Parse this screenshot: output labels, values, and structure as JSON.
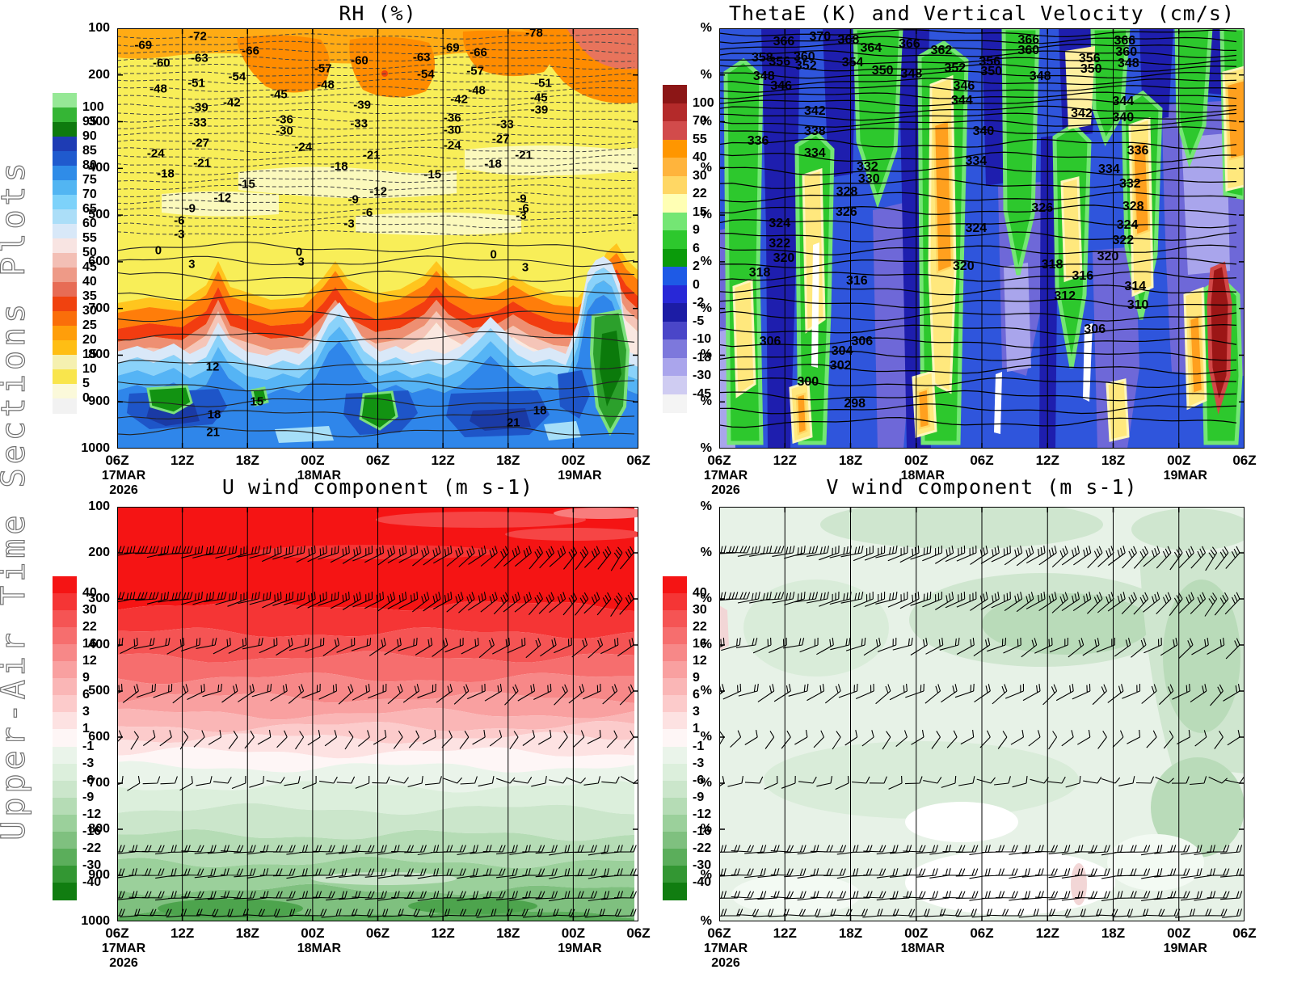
{
  "side_label": "Upper-Air Time Sections Plots",
  "axes": {
    "time_ticks": [
      "06Z",
      "12Z",
      "18Z",
      "00Z",
      "06Z",
      "12Z",
      "18Z",
      "00Z",
      "06Z"
    ],
    "date_labels": [
      {
        "tick": 0,
        "lines": [
          "17MAR",
          "2026"
        ]
      },
      {
        "tick": 3,
        "lines": [
          "18MAR"
        ]
      },
      {
        "tick": 7,
        "lines": [
          "19MAR"
        ]
      }
    ],
    "pressure_labels": [
      "100",
      "200",
      "300",
      "400",
      "500",
      "600",
      "700",
      "800",
      "900",
      "1000"
    ],
    "percent_labels": [
      "%",
      "%",
      "%",
      "%",
      "%",
      "%",
      "%",
      "%",
      "%",
      "%"
    ]
  },
  "panels": {
    "rh": {
      "title": "RH (%)",
      "colorbar": {
        "values": [
          100,
          95,
          90,
          85,
          80,
          75,
          70,
          65,
          60,
          55,
          50,
          45,
          40,
          35,
          30,
          25,
          20,
          15,
          10,
          5,
          0
        ],
        "colors": [
          "#96e896",
          "#35b535",
          "#0e7a0e",
          "#1e3cb4",
          "#1f5ace",
          "#2f8ce8",
          "#52b5f2",
          "#7dd2fa",
          "#abdef8",
          "#d8e8f8",
          "#f8e4e2",
          "#f3bfb5",
          "#ee9a87",
          "#e76c55",
          "#f0420f",
          "#fa6e0a",
          "#ff9e0a",
          "#ffbe14",
          "#f5f0b0",
          "#f9e54c",
          "#fbf9da",
          "#f2f2f2"
        ]
      },
      "contour_labels": [
        [
          5,
          4,
          "-69"
        ],
        [
          15.5,
          2,
          "-72"
        ],
        [
          25.6,
          5.4,
          "-66"
        ],
        [
          64,
          4.6,
          "-69"
        ],
        [
          80,
          1.2,
          "-78"
        ],
        [
          8.5,
          8.3,
          "-60"
        ],
        [
          15.8,
          7.1,
          "-63"
        ],
        [
          46.5,
          7.7,
          "-60"
        ],
        [
          58.4,
          6.9,
          "-63"
        ],
        [
          69.3,
          5.8,
          "-66"
        ],
        [
          39.5,
          9.6,
          "-57"
        ],
        [
          23,
          11.5,
          "-54"
        ],
        [
          59.2,
          11,
          "-54"
        ],
        [
          68.7,
          10.2,
          "-57"
        ],
        [
          15.2,
          13.1,
          "-51"
        ],
        [
          40,
          13.4,
          "-48"
        ],
        [
          81.7,
          13.1,
          "-51"
        ],
        [
          7.9,
          14.4,
          "-48"
        ],
        [
          69,
          14.8,
          "-48"
        ],
        [
          31,
          15.8,
          "-45"
        ],
        [
          80.9,
          16.5,
          "-45"
        ],
        [
          22,
          17.7,
          "-42"
        ],
        [
          65.6,
          16.9,
          "-42"
        ],
        [
          15.8,
          18.8,
          "-39"
        ],
        [
          47,
          18.3,
          "-39"
        ],
        [
          81,
          19.4,
          "-39"
        ],
        [
          32.1,
          21.7,
          "-36"
        ],
        [
          64.3,
          21.3,
          "-36"
        ],
        [
          15.5,
          22.5,
          "-33"
        ],
        [
          46.4,
          22.7,
          "-33"
        ],
        [
          74.4,
          22.9,
          "-33"
        ],
        [
          32.1,
          24.4,
          "-30"
        ],
        [
          64.3,
          24.2,
          "-30"
        ],
        [
          16,
          27.3,
          "-27"
        ],
        [
          73.6,
          26.4,
          "-27"
        ],
        [
          7.4,
          29.8,
          "-24"
        ],
        [
          35.7,
          28.3,
          "-24"
        ],
        [
          64.3,
          27.9,
          "-24"
        ],
        [
          16.3,
          32.1,
          "-21"
        ],
        [
          48.8,
          30.2,
          "-21"
        ],
        [
          78,
          30.2,
          "-21"
        ],
        [
          9.3,
          34.6,
          "-18"
        ],
        [
          42.6,
          32.9,
          "-18"
        ],
        [
          72.1,
          32.3,
          "-18"
        ],
        [
          24.8,
          37.1,
          "-15"
        ],
        [
          60.5,
          34.8,
          "-15"
        ],
        [
          20.2,
          40.4,
          "-12"
        ],
        [
          50.1,
          38.9,
          "-12"
        ],
        [
          14,
          42.9,
          "-9"
        ],
        [
          45.3,
          40.8,
          "-9"
        ],
        [
          77.5,
          40.6,
          "-9"
        ],
        [
          11.9,
          45.8,
          "-6"
        ],
        [
          48,
          43.9,
          "-6"
        ],
        [
          78,
          42.9,
          "-6"
        ],
        [
          11.9,
          49,
          "-3"
        ],
        [
          44.5,
          46.5,
          "-3"
        ],
        [
          77.5,
          44.6,
          "-3"
        ],
        [
          7.9,
          52.9,
          "0"
        ],
        [
          34.9,
          53.3,
          "0"
        ],
        [
          72.2,
          53.8,
          "0"
        ],
        [
          14.3,
          56.2,
          "3"
        ],
        [
          35.3,
          55.6,
          "3"
        ],
        [
          78.3,
          56.9,
          "3"
        ],
        [
          18.3,
          80.5,
          "12"
        ],
        [
          26.8,
          88.8,
          "15"
        ],
        [
          18.6,
          91.9,
          "18"
        ],
        [
          81.1,
          91,
          "18"
        ],
        [
          18.4,
          96.2,
          "21"
        ],
        [
          76,
          93.9,
          "21"
        ]
      ]
    },
    "thetae": {
      "title": "ThetaE (K) and Vertical Velocity (cm/s)",
      "colorbar": {
        "values": [
          100,
          70,
          55,
          40,
          30,
          22,
          15,
          9,
          6,
          2,
          0,
          -2,
          -5,
          -10,
          -18,
          -30,
          -45
        ],
        "colors": [
          "#8c1616",
          "#b42a2a",
          "#d24b4b",
          "#ff9600",
          "#ffb43c",
          "#ffd764",
          "#ffffb4",
          "#74e674",
          "#2dc82d",
          "#0a9b0a",
          "#1e5ae6",
          "#2828d7",
          "#1c1ca5",
          "#4a46c8",
          "#7d78dc",
          "#aaa5ec",
          "#cfccf2",
          "#f4f4f4"
        ]
      },
      "contour_labels": [
        [
          12.3,
          3.3,
          "366"
        ],
        [
          19.2,
          2.1,
          "370"
        ],
        [
          24.6,
          2.9,
          "368"
        ],
        [
          28.9,
          4.8,
          "364"
        ],
        [
          36.2,
          3.8,
          "366"
        ],
        [
          58.9,
          2.9,
          "366"
        ],
        [
          77.2,
          3.1,
          "366"
        ],
        [
          8.2,
          7.1,
          "358"
        ],
        [
          11.5,
          8.1,
          "356"
        ],
        [
          16.2,
          6.9,
          "360"
        ],
        [
          42.3,
          5.4,
          "362"
        ],
        [
          58.9,
          5.4,
          "360"
        ],
        [
          77.5,
          5.8,
          "360"
        ],
        [
          16.5,
          9,
          "352"
        ],
        [
          25.4,
          8.3,
          "354"
        ],
        [
          31.1,
          10.2,
          "350"
        ],
        [
          36.6,
          11,
          "348"
        ],
        [
          44.9,
          9.6,
          "352"
        ],
        [
          51.5,
          8.1,
          "356"
        ],
        [
          51.8,
          10.4,
          "350"
        ],
        [
          70.5,
          7.3,
          "356"
        ],
        [
          70.8,
          9.8,
          "350"
        ],
        [
          77.9,
          8.5,
          "348"
        ],
        [
          8.5,
          11.5,
          "348"
        ],
        [
          61.1,
          11.5,
          "348"
        ],
        [
          11.8,
          13.8,
          "346"
        ],
        [
          46.6,
          13.8,
          "346"
        ],
        [
          46.2,
          17.3,
          "344"
        ],
        [
          76.9,
          17.5,
          "344"
        ],
        [
          18.2,
          19.8,
          "342"
        ],
        [
          69,
          20.4,
          "342"
        ],
        [
          7.4,
          26.9,
          "336"
        ],
        [
          18.2,
          24.6,
          "338"
        ],
        [
          50.3,
          24.6,
          "340"
        ],
        [
          76.9,
          21.3,
          "340"
        ],
        [
          18.2,
          29.8,
          "334"
        ],
        [
          48.9,
          31.7,
          "334"
        ],
        [
          74.2,
          33.7,
          "334"
        ],
        [
          79.7,
          29.2,
          "336"
        ],
        [
          28.2,
          33.1,
          "332"
        ],
        [
          28.5,
          36,
          "330"
        ],
        [
          78.2,
          37.1,
          "332"
        ],
        [
          24.3,
          39,
          "328"
        ],
        [
          24.2,
          43.8,
          "326"
        ],
        [
          61.5,
          42.9,
          "326"
        ],
        [
          78.8,
          42.5,
          "328"
        ],
        [
          11.5,
          46.5,
          "324"
        ],
        [
          48.9,
          47.7,
          "324"
        ],
        [
          77.7,
          46.9,
          "324"
        ],
        [
          11.5,
          51.3,
          "322"
        ],
        [
          76.9,
          50.6,
          "322"
        ],
        [
          12.3,
          54.8,
          "320"
        ],
        [
          46.5,
          56.7,
          "320"
        ],
        [
          74,
          54.4,
          "320"
        ],
        [
          7.7,
          58.3,
          "318"
        ],
        [
          63.4,
          56.3,
          "318"
        ],
        [
          26.2,
          60.2,
          "316"
        ],
        [
          69.2,
          59,
          "316"
        ],
        [
          65.8,
          63.8,
          "312"
        ],
        [
          79.2,
          61.5,
          "314"
        ],
        [
          79.7,
          66,
          "310"
        ],
        [
          9.7,
          74.6,
          "306"
        ],
        [
          27.2,
          74.6,
          "306"
        ],
        [
          71.5,
          71.7,
          "306"
        ],
        [
          23.4,
          76.9,
          "304"
        ],
        [
          23.1,
          80.4,
          "302"
        ],
        [
          16.9,
          84.2,
          "300"
        ],
        [
          25.8,
          89.4,
          "298"
        ]
      ]
    },
    "u": {
      "title": "U wind component (m s-1)",
      "colorbar": {
        "values": [
          40,
          30,
          22,
          16,
          12,
          9,
          6,
          3,
          1,
          -1,
          -3,
          -6,
          -9,
          -12,
          -16,
          -22,
          -30,
          -40
        ],
        "colors": [
          "#f51414",
          "#f53535",
          "#f55454",
          "#f66e6e",
          "#f78888",
          "#f9a0a0",
          "#fab6b6",
          "#fccbcb",
          "#fde2e2",
          "#fef6f6",
          "#eaf4ea",
          "#dcefdc",
          "#cbe6cb",
          "#b5dcb5",
          "#9bd09b",
          "#7fc07f",
          "#5bae5b",
          "#339733",
          "#117d11"
        ]
      }
    },
    "v": {
      "title": "V wind component (m s-1)",
      "colorbar": {
        "values": [
          40,
          30,
          22,
          16,
          12,
          9,
          6,
          3,
          1,
          -1,
          -3,
          -6,
          -9,
          -12,
          -16,
          -22,
          -30,
          -40
        ],
        "colors": [
          "#f51414",
          "#f53535",
          "#f55454",
          "#f66e6e",
          "#f78888",
          "#f9a0a0",
          "#fab6b6",
          "#fccbcb",
          "#fde2e2",
          "#fef6f6",
          "#eaf4ea",
          "#dcefdc",
          "#cbe6cb",
          "#b5dcb5",
          "#9bd09b",
          "#7fc07f",
          "#5bae5b",
          "#339733",
          "#117d11"
        ]
      }
    }
  },
  "chart_data": [
    {
      "type": "heatmap",
      "title": "RH (%)",
      "x_time": [
        "06Z 17MAR 2026",
        "12Z",
        "18Z",
        "00Z 18MAR",
        "06Z",
        "12Z",
        "18Z",
        "00Z 19MAR",
        "06Z"
      ],
      "y_pressure_hPa": [
        100,
        200,
        300,
        400,
        500,
        600,
        700,
        800,
        900,
        1000
      ],
      "shading_variable": "relative humidity (%)",
      "shading_levels": [
        0,
        5,
        10,
        15,
        20,
        25,
        30,
        35,
        40,
        45,
        50,
        55,
        60,
        65,
        70,
        75,
        80,
        85,
        90,
        95,
        100
      ],
      "overlay_contour_variable": "temperature (degC)",
      "contour_interval": 3,
      "labeled_contours": [
        -78,
        -72,
        -69,
        -66,
        -63,
        -60,
        -57,
        -54,
        -51,
        -48,
        -45,
        -42,
        -39,
        -36,
        -33,
        -30,
        -27,
        -24,
        -21,
        -18,
        -15,
        -12,
        -9,
        -6,
        -3,
        0,
        3,
        12,
        15,
        18,
        21
      ],
      "pattern": "dry yellow/orange (RH 0-25) above ~600 hPa with orange maxima 150-250 hPa, sharp orange/red transition near 650-700 hPa, moist blue layer (RH 60-90) 750-1000 hPa with green RH>90 pockets; deep moist green/blue column near 00Z 19MAR",
      "legend_position": "left",
      "grid": true
    },
    {
      "type": "heatmap",
      "title": "ThetaE (K) and Vertical Velocity (cm/s)",
      "x_time": [
        "06Z 17MAR 2026",
        "12Z",
        "18Z",
        "00Z 18MAR",
        "06Z",
        "12Z",
        "18Z",
        "00Z 19MAR",
        "06Z"
      ],
      "y_axis_tick_text": "%",
      "shading_variable": "vertical velocity (cm/s)",
      "shading_levels": [
        -45,
        -30,
        -18,
        -10,
        -5,
        -2,
        0,
        2,
        6,
        9,
        15,
        22,
        30,
        40,
        55,
        70,
        100
      ],
      "overlay_contour_variable": "equivalent potential temperature ThetaE (K)",
      "contour_interval": 2,
      "labeled_contours": [
        298,
        300,
        302,
        304,
        306,
        310,
        312,
        314,
        316,
        318,
        320,
        322,
        324,
        326,
        328,
        330,
        332,
        334,
        336,
        338,
        340,
        342,
        344,
        346,
        348,
        350,
        352,
        354,
        356,
        358,
        360,
        362,
        364,
        366,
        368,
        370
      ],
      "pattern": "alternating vertical columns of ascent (green/yellow/orange, 2 to 55 cm/s) and descent (blue/purple, -2 to -45 cm/s); strong dark-red ascent plume >70 cm/s near 00Z-06Z 19MAR in lower levels",
      "legend_position": "left",
      "grid": true
    },
    {
      "type": "heatmap",
      "title": "U wind component (m s-1)",
      "x_time": [
        "06Z 17MAR 2026",
        "12Z",
        "18Z",
        "00Z 18MAR",
        "06Z",
        "12Z",
        "18Z",
        "00Z 19MAR",
        "06Z"
      ],
      "y_pressure_hPa": [
        100,
        200,
        300,
        400,
        500,
        600,
        700,
        800,
        900,
        1000
      ],
      "shading_variable": "zonal wind U (m/s)",
      "shading_levels": [
        -40,
        -30,
        -22,
        -16,
        -12,
        -9,
        -6,
        -3,
        -1,
        1,
        3,
        6,
        9,
        12,
        16,
        22,
        30,
        40
      ],
      "overlay": "wind barbs at multiple pressure levels",
      "pattern": "strong westerly (red, >30-40 m/s) 100-300 hPa weakening downward to near zero ~575-625 hPa, easterly (green, -3 to -22 m/s) below ~650 hPa",
      "legend_position": "left",
      "grid": true
    },
    {
      "type": "heatmap",
      "title": "V wind component (m s-1)",
      "x_time": [
        "06Z 17MAR 2026",
        "12Z",
        "18Z",
        "00Z 18MAR",
        "06Z",
        "12Z",
        "18Z",
        "00Z 19MAR",
        "06Z"
      ],
      "y_axis_tick_text": "%",
      "shading_variable": "meridional wind V (m/s)",
      "shading_levels": [
        -40,
        -30,
        -22,
        -16,
        -12,
        -9,
        -6,
        -3,
        -1,
        1,
        3,
        6,
        9,
        12,
        16,
        22,
        30,
        40
      ],
      "overlay": "wind barbs at multiple pressure levels",
      "pattern": "mostly weak negative V (pale green, -1 to -12 m/s) throughout; stronger green patches 300-400 hPa and 18Z 18MAR-06Z 19MAR mid levels; near-zero white patches 850-1000 hPa with a small positive pink spot after 00Z 19MAR",
      "legend_position": "left",
      "grid": true
    }
  ]
}
